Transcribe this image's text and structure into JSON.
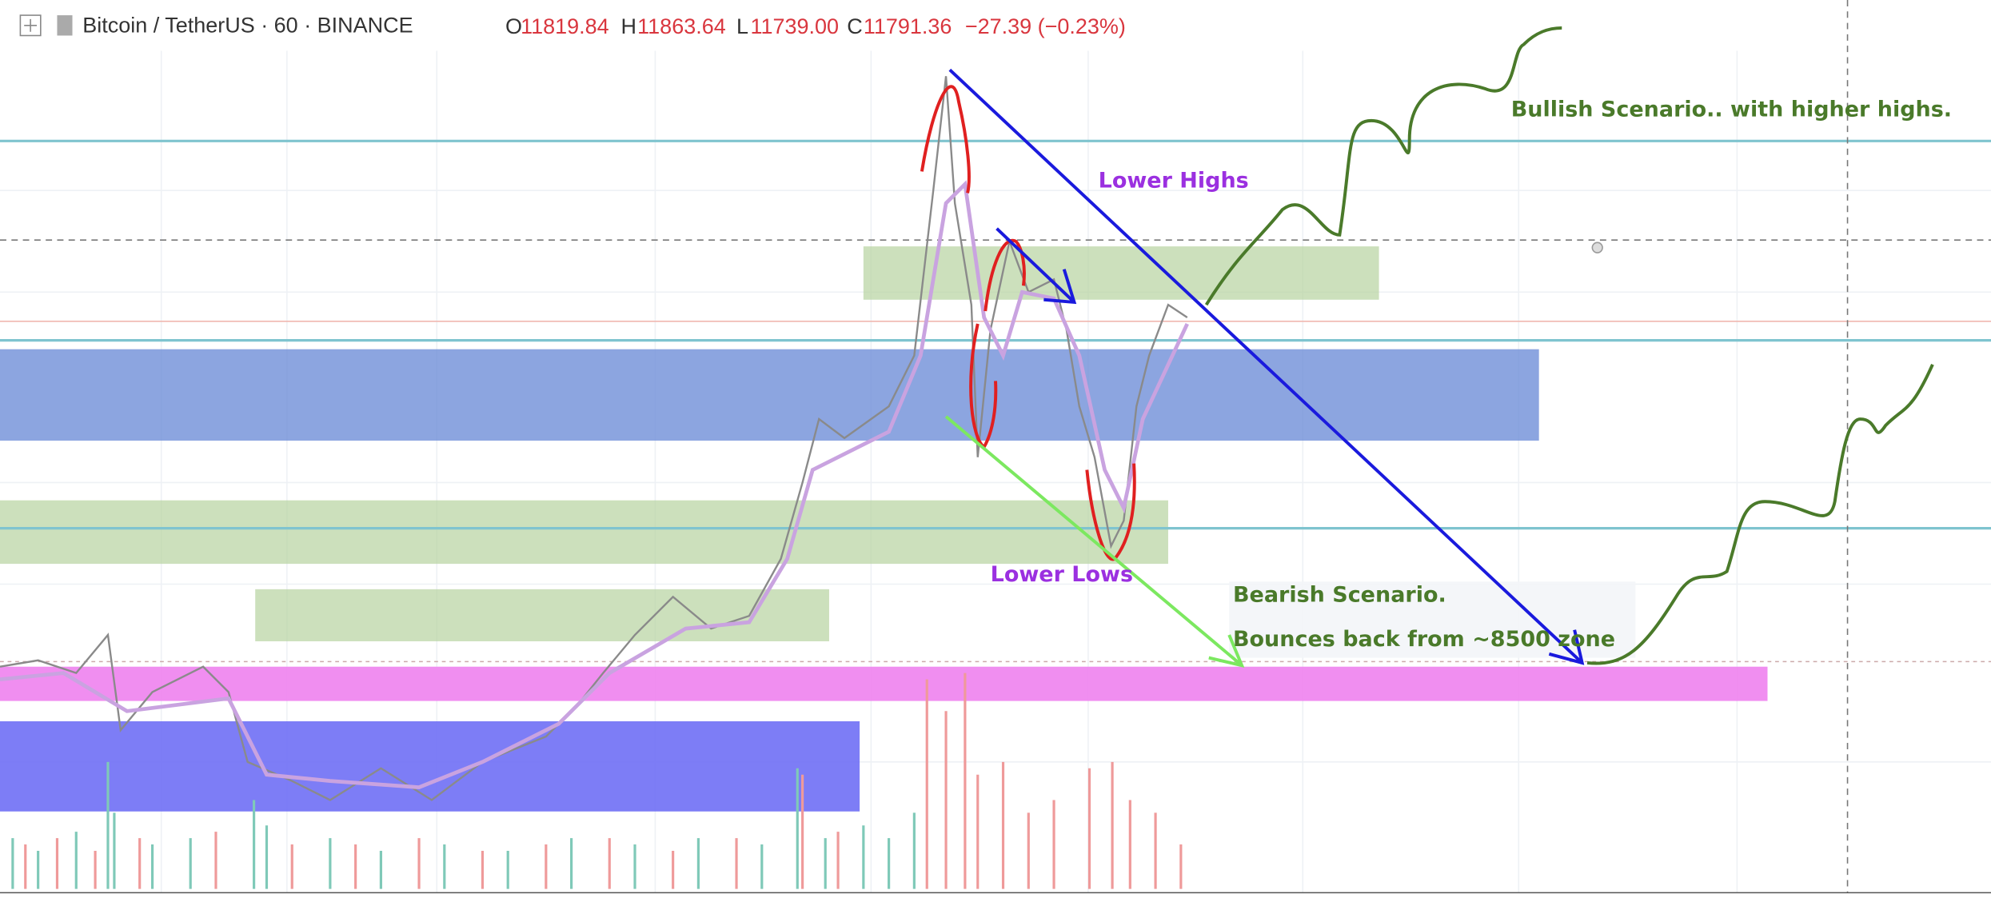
{
  "header": {
    "symbol": "Bitcoin / TetherUS · 60 · BINANCE",
    "ohlc": [
      {
        "label": "O",
        "value": "11819.84"
      },
      {
        "label": "H",
        "value": "11863.64"
      },
      {
        "label": "L",
        "value": "11739.00"
      },
      {
        "label": "C",
        "value": "11791.36"
      }
    ],
    "change": "−27.39 (−0.23%)"
  },
  "annotations": {
    "lower_highs": "Lower Highs",
    "lower_lows": "Lower Lows",
    "bullish": "Bullish Scenario.. with higher highs.",
    "bearish": "Bearish Scenario.",
    "bounce": "Bounces back from ~8500 zone"
  }
}
